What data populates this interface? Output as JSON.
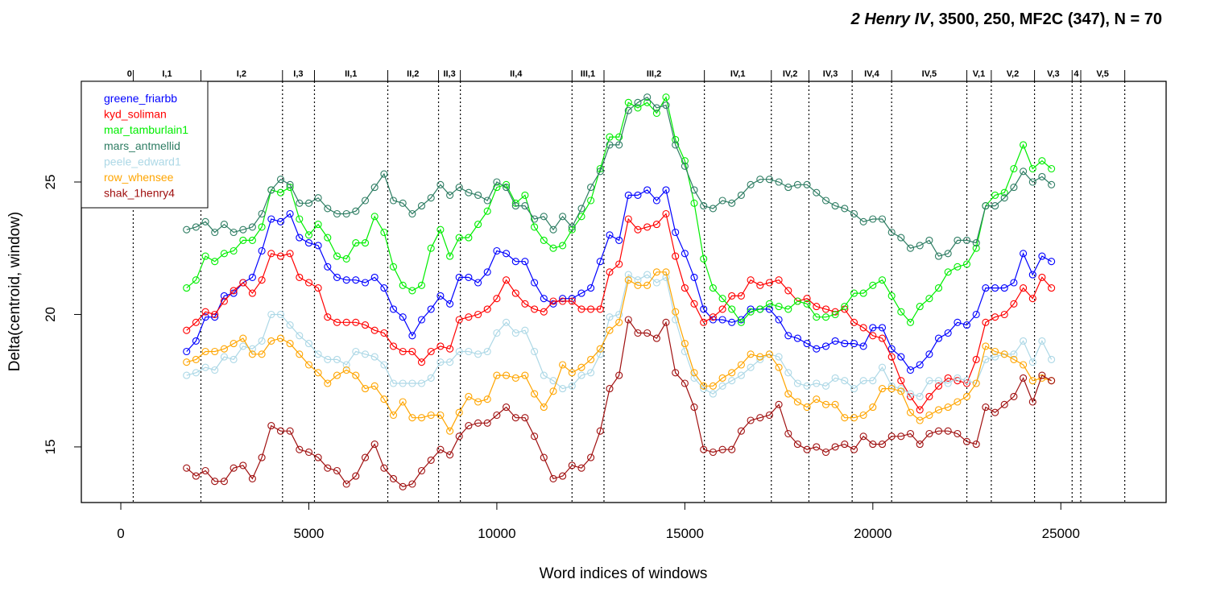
{
  "chart_data": {
    "type": "line",
    "title": {
      "italic_part": "2 Henry IV",
      "rest": ", 3500, 250, MF2C (347), N = 70"
    },
    "xlabel": "Word indices of windows",
    "ylabel": "Delta(centroid, window)",
    "xlim": [
      -1050,
      27800
    ],
    "ylim": [
      12.9,
      28.8
    ],
    "x_ticks": [
      0,
      5000,
      10000,
      15000,
      20000,
      25000
    ],
    "y_ticks": [
      15,
      20,
      25
    ],
    "scene_boundaries": [
      330,
      2130,
      4300,
      5150,
      7100,
      8450,
      9030,
      12000,
      12850,
      15520,
      17300,
      18300,
      19450,
      20500,
      22500,
      23150,
      24300,
      25300,
      25530,
      26700
    ],
    "scene_labels": [
      {
        "label": "0",
        "x": 230
      },
      {
        "label": "I,1",
        "x": 1230
      },
      {
        "label": "I,2",
        "x": 3210
      },
      {
        "label": "I,3",
        "x": 4720
      },
      {
        "label": "II,1",
        "x": 6120
      },
      {
        "label": "II,2",
        "x": 7770
      },
      {
        "label": "II,3",
        "x": 8740
      },
      {
        "label": "II,4",
        "x": 10510
      },
      {
        "label": "III,1",
        "x": 12420
      },
      {
        "label": "III,2",
        "x": 14180
      },
      {
        "label": "IV,1",
        "x": 16410
      },
      {
        "label": "IV,2",
        "x": 17800
      },
      {
        "label": "IV,3",
        "x": 18870
      },
      {
        "label": "IV,4",
        "x": 19970
      },
      {
        "label": "IV,5",
        "x": 21500
      },
      {
        "label": "V,1",
        "x": 22820
      },
      {
        "label": "V,2",
        "x": 23720
      },
      {
        "label": "V,3",
        "x": 24800
      },
      {
        "label": "4",
        "x": 25410
      },
      {
        "label": "V,5",
        "x": 26110
      }
    ],
    "x": [
      1750,
      2000,
      2250,
      2500,
      2750,
      3000,
      3250,
      3500,
      3750,
      4000,
      4250,
      4500,
      4750,
      5000,
      5250,
      5500,
      5750,
      6000,
      6250,
      6500,
      6750,
      7000,
      7250,
      7500,
      7750,
      8000,
      8250,
      8500,
      8750,
      9000,
      9250,
      9500,
      9750,
      10000,
      10250,
      10500,
      10750,
      11000,
      11250,
      11500,
      11750,
      12000,
      12250,
      12500,
      12750,
      13000,
      13250,
      13500,
      13750,
      14000,
      14250,
      14500,
      14750,
      15000,
      15250,
      15500,
      15750,
      16000,
      16250,
      16500,
      16750,
      17000,
      17250,
      17500,
      17750,
      18000,
      18250,
      18500,
      18750,
      19000,
      19250,
      19500,
      19750,
      20000,
      20250,
      20500,
      20750,
      21000,
      21250,
      21500,
      21750,
      22000,
      22250,
      22500,
      22750,
      23000,
      23250,
      23500,
      23750,
      24000,
      24250,
      24500,
      24750
    ],
    "series": [
      {
        "name": "greene_friarbb",
        "color": "#0000ff",
        "values": [
          18.6,
          19.0,
          19.9,
          19.9,
          20.7,
          20.8,
          21.2,
          21.4,
          22.4,
          23.6,
          23.5,
          23.8,
          22.9,
          22.7,
          22.6,
          21.8,
          21.4,
          21.3,
          21.3,
          21.2,
          21.4,
          21.0,
          20.2,
          19.9,
          19.2,
          19.8,
          20.2,
          20.7,
          20.4,
          21.4,
          21.4,
          21.2,
          21.6,
          22.4,
          22.3,
          22.0,
          22.0,
          21.2,
          20.6,
          20.4,
          20.6,
          20.6,
          20.8,
          21.0,
          22.0,
          23.0,
          22.8,
          24.5,
          24.5,
          24.7,
          24.3,
          24.7,
          23.1,
          22.3,
          21.4,
          20.2,
          19.8,
          19.8,
          19.7,
          19.8,
          20.2,
          20.2,
          20.2,
          19.8,
          19.2,
          19.1,
          18.9,
          18.7,
          18.8,
          19.0,
          18.9,
          18.9,
          18.8,
          19.5,
          19.5,
          18.7,
          18.4,
          17.9,
          18.1,
          18.5,
          19.1,
          19.3,
          19.7,
          19.6,
          20.0,
          21.0,
          21.0,
          21.0,
          21.2,
          22.3,
          21.5,
          22.2,
          22.0
        ]
      },
      {
        "name": "kyd_soliman",
        "color": "#ff0000",
        "values": [
          19.4,
          19.7,
          20.1,
          20.0,
          20.5,
          20.9,
          21.2,
          20.8,
          21.3,
          22.3,
          22.2,
          22.3,
          21.4,
          21.2,
          21.0,
          19.9,
          19.7,
          19.7,
          19.7,
          19.6,
          19.4,
          19.3,
          18.8,
          18.6,
          18.6,
          18.2,
          18.6,
          18.8,
          18.7,
          19.8,
          19.9,
          20.0,
          20.2,
          20.6,
          21.3,
          20.8,
          20.4,
          20.2,
          20.1,
          20.5,
          20.5,
          20.5,
          20.2,
          20.2,
          20.2,
          21.6,
          21.9,
          23.6,
          23.2,
          23.3,
          23.4,
          23.8,
          22.2,
          21.0,
          20.4,
          19.7,
          19.9,
          20.2,
          20.7,
          20.7,
          21.3,
          21.1,
          21.2,
          21.3,
          20.9,
          20.5,
          20.6,
          20.3,
          20.2,
          20.1,
          20.2,
          19.7,
          19.5,
          19.2,
          19.1,
          18.4,
          17.5,
          16.9,
          16.4,
          16.9,
          17.3,
          17.6,
          17.5,
          17.4,
          18.3,
          19.7,
          19.9,
          20.0,
          20.4,
          21.0,
          20.6,
          21.4,
          21.0
        ]
      },
      {
        "name": "mar_tamburlain1",
        "color": "#00ee00",
        "values": [
          21.0,
          21.3,
          22.2,
          22.0,
          22.3,
          22.4,
          22.8,
          22.8,
          23.3,
          24.7,
          24.6,
          24.8,
          23.6,
          23.0,
          23.4,
          22.9,
          22.2,
          22.1,
          22.7,
          22.7,
          23.7,
          23.1,
          21.8,
          21.1,
          20.9,
          21.1,
          22.5,
          23.2,
          22.2,
          22.9,
          22.9,
          23.4,
          23.9,
          24.8,
          24.9,
          24.2,
          24.5,
          23.3,
          22.8,
          22.5,
          22.6,
          23.2,
          23.7,
          24.3,
          25.5,
          26.7,
          26.7,
          28.0,
          27.8,
          28.0,
          27.6,
          28.2,
          26.6,
          25.8,
          24.2,
          22.1,
          21.0,
          20.6,
          20.2,
          19.7,
          20.1,
          20.2,
          20.4,
          20.3,
          20.2,
          20.5,
          20.4,
          19.9,
          19.9,
          20.0,
          20.3,
          20.8,
          20.8,
          21.1,
          21.3,
          20.7,
          20.1,
          19.7,
          20.3,
          20.6,
          21.0,
          21.6,
          21.8,
          21.9,
          22.5,
          24.1,
          24.5,
          24.6,
          25.5,
          26.4,
          25.5,
          25.8,
          25.5
        ]
      },
      {
        "name": "mars_antmellid",
        "color": "#2e7d63",
        "values": [
          23.2,
          23.3,
          23.5,
          23.1,
          23.4,
          23.1,
          23.2,
          23.3,
          23.8,
          24.7,
          25.1,
          24.9,
          24.2,
          24.2,
          24.4,
          24.0,
          23.8,
          23.8,
          23.9,
          24.3,
          24.8,
          25.3,
          24.3,
          24.2,
          23.8,
          24.1,
          24.4,
          24.9,
          24.5,
          24.8,
          24.6,
          24.5,
          24.3,
          25.0,
          24.8,
          24.1,
          24.1,
          23.6,
          23.7,
          23.2,
          23.7,
          23.3,
          24.0,
          24.8,
          25.4,
          26.4,
          26.4,
          27.7,
          28.0,
          28.2,
          27.8,
          27.9,
          26.4,
          25.6,
          24.7,
          24.1,
          24.0,
          24.3,
          24.2,
          24.5,
          24.9,
          25.1,
          25.1,
          25.0,
          24.8,
          24.9,
          24.9,
          24.6,
          24.3,
          24.1,
          24.0,
          23.8,
          23.5,
          23.6,
          23.6,
          23.1,
          22.9,
          22.5,
          22.6,
          22.8,
          22.2,
          22.3,
          22.8,
          22.8,
          22.7,
          24.1,
          24.1,
          24.4,
          24.8,
          25.4,
          25.0,
          25.2,
          24.9
        ]
      },
      {
        "name": "peele_edward1",
        "color": "#add8e6",
        "values": [
          17.7,
          17.8,
          18.0,
          17.9,
          18.4,
          18.3,
          18.8,
          18.7,
          19.0,
          20.0,
          20.0,
          19.6,
          19.2,
          18.9,
          18.5,
          18.3,
          18.3,
          18.1,
          18.6,
          18.5,
          18.4,
          18.1,
          17.4,
          17.4,
          17.4,
          17.4,
          17.6,
          18.2,
          18.2,
          18.6,
          18.6,
          18.5,
          18.6,
          19.3,
          19.7,
          19.3,
          19.4,
          18.6,
          17.7,
          17.5,
          17.2,
          17.3,
          17.7,
          17.8,
          18.5,
          19.9,
          20.0,
          21.5,
          21.3,
          21.5,
          21.2,
          21.4,
          19.8,
          18.6,
          17.6,
          17.2,
          17.0,
          17.3,
          17.5,
          17.7,
          18.0,
          18.3,
          18.5,
          18.4,
          17.8,
          17.4,
          17.3,
          17.4,
          17.3,
          17.6,
          17.5,
          17.2,
          17.5,
          17.5,
          18.0,
          17.3,
          17.2,
          17.0,
          16.9,
          17.5,
          17.5,
          17.4,
          17.6,
          17.5,
          17.4,
          18.3,
          18.4,
          18.5,
          18.5,
          19.0,
          18.2,
          19.0,
          18.3
        ]
      },
      {
        "name": "row_whensee",
        "color": "#ffa500",
        "values": [
          18.2,
          18.3,
          18.6,
          18.6,
          18.7,
          18.9,
          19.1,
          18.5,
          18.5,
          19.0,
          19.1,
          18.9,
          18.5,
          18.1,
          17.8,
          17.4,
          17.7,
          17.9,
          17.7,
          17.2,
          17.3,
          16.8,
          16.2,
          16.7,
          16.1,
          16.1,
          16.2,
          16.2,
          15.6,
          16.3,
          16.9,
          16.7,
          16.8,
          17.7,
          17.7,
          17.6,
          17.7,
          17.0,
          16.5,
          17.1,
          18.1,
          17.8,
          18.0,
          18.3,
          18.7,
          19.4,
          19.7,
          21.3,
          21.1,
          21.1,
          21.6,
          21.6,
          20.1,
          18.9,
          17.8,
          17.3,
          17.3,
          17.6,
          17.8,
          18.1,
          18.5,
          18.4,
          18.5,
          18.0,
          17.0,
          16.7,
          16.5,
          16.8,
          16.6,
          16.6,
          16.1,
          16.1,
          16.2,
          16.5,
          17.2,
          17.2,
          17.1,
          16.3,
          16.0,
          16.2,
          16.4,
          16.5,
          16.7,
          16.9,
          17.4,
          18.8,
          18.6,
          18.5,
          18.3,
          18.1,
          17.5,
          17.6,
          17.5
        ]
      },
      {
        "name": "shak_1henry4",
        "color": "#a01010",
        "values": [
          14.2,
          13.9,
          14.1,
          13.7,
          13.7,
          14.2,
          14.3,
          13.8,
          14.6,
          15.8,
          15.6,
          15.6,
          14.9,
          14.8,
          14.6,
          14.2,
          14.1,
          13.6,
          13.9,
          14.6,
          15.1,
          14.2,
          13.8,
          13.5,
          13.6,
          14.1,
          14.5,
          14.9,
          14.7,
          15.4,
          15.8,
          15.9,
          15.9,
          16.2,
          16.5,
          16.1,
          16.1,
          15.4,
          14.6,
          13.8,
          13.9,
          14.3,
          14.2,
          14.6,
          15.6,
          17.2,
          17.7,
          19.8,
          19.3,
          19.3,
          19.1,
          19.7,
          17.8,
          17.4,
          16.5,
          14.9,
          14.8,
          14.9,
          14.9,
          15.6,
          16.0,
          16.1,
          16.2,
          16.6,
          15.5,
          15.1,
          14.9,
          15.0,
          14.8,
          15.0,
          15.1,
          14.9,
          15.4,
          15.1,
          15.1,
          15.4,
          15.4,
          15.5,
          15.1,
          15.5,
          15.6,
          15.6,
          15.5,
          15.2,
          15.1,
          16.5,
          16.3,
          16.6,
          16.9,
          17.6,
          16.7,
          17.7,
          17.5
        ]
      }
    ],
    "legend_position": "top-left",
    "grid": false
  }
}
